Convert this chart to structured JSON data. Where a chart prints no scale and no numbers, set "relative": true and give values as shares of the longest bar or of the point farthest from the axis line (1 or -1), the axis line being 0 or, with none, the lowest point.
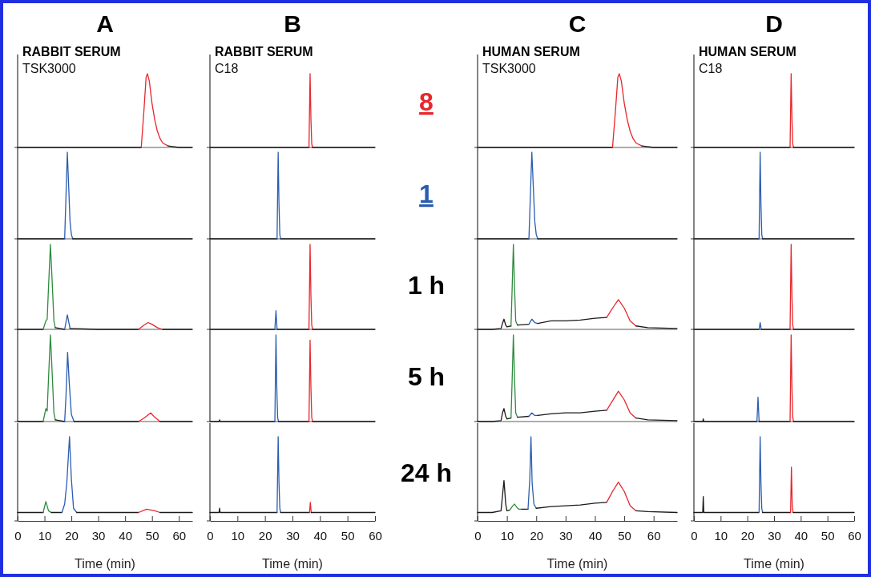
{
  "chart_data": [
    {
      "type": "line",
      "relative": true,
      "title": "A",
      "subtitle": "RABBIT SERUM",
      "annotations": [
        "TSK3000"
      ],
      "xlim": [
        0,
        65
      ],
      "tick_labels": false,
      "series": [
        {
          "color": "#1a1a1a",
          "x": [
            0,
            10,
            20,
            30,
            40,
            46
          ],
          "values": [
            0,
            0,
            0,
            0,
            0,
            0
          ]
        },
        {
          "color": "#e8262c",
          "x": [
            46,
            47,
            47.8,
            48.3,
            49,
            50,
            51,
            52,
            53,
            54,
            56
          ],
          "values": [
            0,
            0.5,
            0.95,
            1,
            0.9,
            0.6,
            0.38,
            0.22,
            0.12,
            0.06,
            0.02
          ]
        },
        {
          "color": "#1a1a1a",
          "x": [
            56,
            60,
            65
          ],
          "values": [
            0.02,
            0,
            0
          ]
        }
      ]
    },
    {
      "type": "line",
      "relative": true,
      "xlim": [
        0,
        65
      ],
      "tick_labels": false,
      "series": [
        {
          "color": "#1a1a1a",
          "x": [
            0,
            10,
            17.5
          ],
          "values": [
            0,
            0,
            0
          ]
        },
        {
          "color": "#2a5db0",
          "x": [
            17.5,
            18,
            18.5,
            19,
            19.5,
            20,
            20.5
          ],
          "values": [
            0,
            0.5,
            1,
            0.6,
            0.2,
            0.05,
            0
          ]
        },
        {
          "color": "#1a1a1a",
          "x": [
            20.5,
            30,
            40,
            50,
            65
          ],
          "values": [
            0,
            0,
            0,
            0,
            0
          ]
        }
      ]
    },
    {
      "type": "line",
      "relative": true,
      "xlim": [
        0,
        65
      ],
      "tick_labels": false,
      "series": [
        {
          "color": "#1a1a1a",
          "x": [
            0,
            5,
            9.5
          ],
          "values": [
            0,
            0,
            0
          ]
        },
        {
          "color": "#2e8b3e",
          "x": [
            9.5,
            10.5,
            11,
            11.5,
            12.2,
            12.8,
            13.5,
            14
          ],
          "values": [
            0,
            0.1,
            0.12,
            0.5,
            1,
            0.6,
            0.1,
            0.02
          ]
        },
        {
          "color": "#1a1a1a",
          "x": [
            14,
            17.5
          ],
          "values": [
            0.02,
            0
          ]
        },
        {
          "color": "#2a5db0",
          "x": [
            17.5,
            18.5,
            19.5
          ],
          "values": [
            0,
            0.17,
            0.01
          ]
        },
        {
          "color": "#1a1a1a",
          "x": [
            19.5,
            30,
            45
          ],
          "values": [
            0.01,
            0,
            0
          ]
        },
        {
          "color": "#e8262c",
          "x": [
            45,
            47,
            48.5,
            50,
            52,
            54
          ],
          "values": [
            0,
            0.05,
            0.08,
            0.06,
            0.02,
            0
          ]
        },
        {
          "color": "#1a1a1a",
          "x": [
            54,
            65
          ],
          "values": [
            0,
            0
          ]
        }
      ]
    },
    {
      "type": "line",
      "relative": true,
      "xlim": [
        0,
        65
      ],
      "tick_labels": false,
      "series": [
        {
          "color": "#1a1a1a",
          "x": [
            0,
            9.5
          ],
          "values": [
            0,
            0
          ]
        },
        {
          "color": "#2e8b3e",
          "x": [
            9.5,
            10.5,
            11,
            11.5,
            12.2,
            12.8,
            13.5,
            14
          ],
          "values": [
            0,
            0.15,
            0.12,
            0.5,
            1,
            0.6,
            0.1,
            0.02
          ]
        },
        {
          "color": "#1a1a1a",
          "x": [
            14,
            17.5
          ],
          "values": [
            0.02,
            0
          ]
        },
        {
          "color": "#2a5db0",
          "x": [
            17.5,
            18,
            18.6,
            19.2,
            20,
            21
          ],
          "values": [
            0,
            0.3,
            0.8,
            0.45,
            0.08,
            0
          ]
        },
        {
          "color": "#1a1a1a",
          "x": [
            21,
            45
          ],
          "values": [
            0,
            0
          ]
        },
        {
          "color": "#e8262c",
          "x": [
            45,
            47,
            49.5,
            51,
            53
          ],
          "values": [
            0,
            0.04,
            0.1,
            0.05,
            0
          ]
        },
        {
          "color": "#1a1a1a",
          "x": [
            53,
            65
          ],
          "values": [
            0,
            0
          ]
        }
      ]
    },
    {
      "type": "line",
      "relative": true,
      "xlim": [
        0,
        65
      ],
      "xticks": [
        0,
        10,
        20,
        30,
        40,
        50,
        60
      ],
      "xlabel": "Time (min)",
      "tick_labels": "x",
      "series": [
        {
          "color": "#1a1a1a",
          "x": [
            0,
            9.5
          ],
          "values": [
            0.1,
            0.1
          ]
        },
        {
          "color": "#2e8b3e",
          "x": [
            9.5,
            10.5,
            11.5,
            12.5
          ],
          "values": [
            0.1,
            0.23,
            0.12,
            0.1
          ]
        },
        {
          "color": "#1a1a1a",
          "x": [
            12.5,
            16.5
          ],
          "values": [
            0.1,
            0.1
          ]
        },
        {
          "color": "#2a5db0",
          "x": [
            16.5,
            17.5,
            18.3,
            19.3,
            20,
            20.8,
            22
          ],
          "values": [
            0.1,
            0.2,
            0.45,
            1,
            0.5,
            0.15,
            0.1
          ]
        },
        {
          "color": "#1a1a1a",
          "x": [
            22,
            45
          ],
          "values": [
            0.1,
            0.1
          ]
        },
        {
          "color": "#e8262c",
          "x": [
            45,
            48,
            51,
            53
          ],
          "values": [
            0.1,
            0.14,
            0.12,
            0.1
          ]
        },
        {
          "color": "#1a1a1a",
          "x": [
            53,
            65
          ],
          "values": [
            0.1,
            0.1
          ]
        }
      ]
    },
    {
      "type": "line",
      "relative": true,
      "title": "B",
      "subtitle": "RABBIT SERUM",
      "annotations": [
        "C18",
        "8"
      ],
      "xlim": [
        0,
        60
      ],
      "tick_labels": false,
      "series": [
        {
          "color": "#1a1a1a",
          "x": [
            0,
            36
          ],
          "values": [
            0,
            0
          ]
        },
        {
          "color": "#e8262c",
          "x": [
            36,
            36.4,
            36.7,
            37,
            37.3
          ],
          "values": [
            0,
            1,
            0.4,
            0.05,
            0
          ]
        },
        {
          "color": "#1a1a1a",
          "x": [
            37.3,
            60
          ],
          "values": [
            0,
            0
          ]
        }
      ]
    },
    {
      "type": "line",
      "relative": true,
      "annotations": [
        "1"
      ],
      "xlim": [
        0,
        60
      ],
      "tick_labels": false,
      "series": [
        {
          "color": "#1a1a1a",
          "x": [
            0,
            24.4
          ],
          "values": [
            0,
            0
          ]
        },
        {
          "color": "#2a5db0",
          "x": [
            24.4,
            24.8,
            25.1,
            25.4,
            25.7
          ],
          "values": [
            0,
            1,
            0.4,
            0.05,
            0
          ]
        },
        {
          "color": "#1a1a1a",
          "x": [
            25.7,
            60
          ],
          "values": [
            0,
            0
          ]
        }
      ]
    },
    {
      "type": "line",
      "relative": true,
      "annotations": [
        "1 h"
      ],
      "xlim": [
        0,
        60
      ],
      "tick_labels": false,
      "series": [
        {
          "color": "#1a1a1a",
          "x": [
            0,
            23.6
          ],
          "values": [
            0,
            0
          ]
        },
        {
          "color": "#2a5db0",
          "x": [
            23.6,
            24,
            24.4
          ],
          "values": [
            0,
            0.22,
            0
          ]
        },
        {
          "color": "#1a1a1a",
          "x": [
            24.4,
            36
          ],
          "values": [
            0,
            0
          ]
        },
        {
          "color": "#e8262c",
          "x": [
            36,
            36.4,
            36.7,
            37,
            37.3
          ],
          "values": [
            0,
            1,
            0.4,
            0.05,
            0
          ]
        },
        {
          "color": "#1a1a1a",
          "x": [
            37.3,
            60
          ],
          "values": [
            0,
            0
          ]
        }
      ]
    },
    {
      "type": "line",
      "relative": true,
      "annotations": [
        "5 h"
      ],
      "xlim": [
        0,
        60
      ],
      "tick_labels": false,
      "series": [
        {
          "color": "#1a1a1a",
          "x": [
            0,
            3.3,
            3.5,
            3.7,
            23.6
          ],
          "values": [
            0,
            0,
            0.02,
            0,
            0
          ]
        },
        {
          "color": "#2a5db0",
          "x": [
            23.6,
            24,
            24.3,
            24.6,
            24.9
          ],
          "values": [
            0,
            1,
            0.4,
            0.05,
            0
          ]
        },
        {
          "color": "#1a1a1a",
          "x": [
            24.9,
            36
          ],
          "values": [
            0,
            0
          ]
        },
        {
          "color": "#e8262c",
          "x": [
            36,
            36.4,
            36.7,
            37,
            37.3
          ],
          "values": [
            0,
            0.94,
            0.4,
            0.05,
            0
          ]
        },
        {
          "color": "#1a1a1a",
          "x": [
            37.3,
            60
          ],
          "values": [
            0,
            0
          ]
        }
      ]
    },
    {
      "type": "line",
      "relative": true,
      "annotations": [
        "24 h"
      ],
      "xlim": [
        0,
        60
      ],
      "xticks": [
        0,
        10,
        20,
        30,
        40,
        50,
        60
      ],
      "xlabel": "Time (min)",
      "tick_labels": "x",
      "series": [
        {
          "color": "#1a1a1a",
          "x": [
            0,
            3.3,
            3.5,
            3.7,
            24.4
          ],
          "values": [
            0.1,
            0.1,
            0.15,
            0.1,
            0.1
          ]
        },
        {
          "color": "#2a5db0",
          "x": [
            24.4,
            24.8,
            25.1,
            25.4,
            25.7
          ],
          "values": [
            0.1,
            1,
            0.45,
            0.15,
            0.1
          ]
        },
        {
          "color": "#1a1a1a",
          "x": [
            25.7,
            36.2
          ],
          "values": [
            0.1,
            0.1
          ]
        },
        {
          "color": "#e8262c",
          "x": [
            36.2,
            36.5,
            36.8
          ],
          "values": [
            0.1,
            0.22,
            0.1
          ]
        },
        {
          "color": "#1a1a1a",
          "x": [
            36.8,
            60
          ],
          "values": [
            0.1,
            0.1
          ]
        }
      ]
    },
    {
      "type": "line",
      "relative": true,
      "title": "C",
      "subtitle": "HUMAN SERUM",
      "annotations": [
        "TSK3000"
      ],
      "xlim": [
        0,
        68
      ],
      "tick_labels": false,
      "series": [
        {
          "color": "#1a1a1a",
          "x": [
            0,
            10,
            20,
            30,
            40,
            46
          ],
          "values": [
            0,
            0,
            0,
            0,
            0,
            0
          ]
        },
        {
          "color": "#e8262c",
          "x": [
            46,
            47,
            47.8,
            48.3,
            49,
            50,
            51,
            52,
            53,
            54,
            56
          ],
          "values": [
            0,
            0.5,
            0.95,
            1,
            0.9,
            0.6,
            0.38,
            0.22,
            0.12,
            0.06,
            0.02
          ]
        },
        {
          "color": "#1a1a1a",
          "x": [
            56,
            60,
            68
          ],
          "values": [
            0.02,
            0,
            0
          ]
        }
      ]
    },
    {
      "type": "line",
      "relative": true,
      "xlim": [
        0,
        68
      ],
      "tick_labels": false,
      "series": [
        {
          "color": "#1a1a1a",
          "x": [
            0,
            10,
            17.5
          ],
          "values": [
            0,
            0,
            0
          ]
        },
        {
          "color": "#2a5db0",
          "x": [
            17.5,
            18,
            18.5,
            19,
            19.5,
            20,
            20.5
          ],
          "values": [
            0,
            0.5,
            1,
            0.6,
            0.2,
            0.05,
            0
          ]
        },
        {
          "color": "#1a1a1a",
          "x": [
            20.5,
            30,
            40,
            50,
            68
          ],
          "values": [
            0,
            0,
            0,
            0,
            0
          ]
        }
      ]
    },
    {
      "type": "line",
      "relative": true,
      "xlim": [
        0,
        68
      ],
      "tick_labels": false,
      "series": [
        {
          "color": "#1a1a1a",
          "x": [
            0,
            5,
            8,
            8.5,
            9,
            9.6,
            10,
            11.4
          ],
          "values": [
            0,
            0,
            0.01,
            0.07,
            0.12,
            0.05,
            0.03,
            0.04
          ]
        },
        {
          "color": "#2e8b3e",
          "x": [
            11.4,
            11.8,
            12.2,
            12.6,
            13,
            13.6
          ],
          "values": [
            0.04,
            0.5,
            1,
            0.5,
            0.1,
            0.05
          ]
        },
        {
          "color": "#1a1a1a",
          "x": [
            13.6,
            17.5
          ],
          "values": [
            0.05,
            0.06
          ]
        },
        {
          "color": "#2a5db0",
          "x": [
            17.5,
            18.5,
            19.5,
            20.5
          ],
          "values": [
            0.06,
            0.12,
            0.08,
            0.07
          ]
        },
        {
          "color": "#1a1a1a",
          "x": [
            20.5,
            25,
            30,
            35,
            40,
            44
          ],
          "values": [
            0.07,
            0.1,
            0.1,
            0.11,
            0.13,
            0.14
          ]
        },
        {
          "color": "#e8262c",
          "x": [
            44,
            46,
            48,
            50,
            52,
            54
          ],
          "values": [
            0.14,
            0.25,
            0.35,
            0.25,
            0.1,
            0.04
          ]
        },
        {
          "color": "#1a1a1a",
          "x": [
            54,
            58,
            68
          ],
          "values": [
            0.04,
            0.02,
            0.01
          ]
        }
      ]
    },
    {
      "type": "line",
      "relative": true,
      "xlim": [
        0,
        68
      ],
      "tick_labels": false,
      "series": [
        {
          "color": "#1a1a1a",
          "x": [
            0,
            5,
            8,
            8.5,
            9,
            9.6,
            10,
            11.4
          ],
          "values": [
            0,
            0,
            0.01,
            0.1,
            0.15,
            0.06,
            0.03,
            0.04
          ]
        },
        {
          "color": "#2e8b3e",
          "x": [
            11.4,
            11.8,
            12.2,
            12.6,
            13,
            13.6
          ],
          "values": [
            0.04,
            0.5,
            1,
            0.5,
            0.1,
            0.05
          ]
        },
        {
          "color": "#1a1a1a",
          "x": [
            13.6,
            17.5
          ],
          "values": [
            0.05,
            0.06
          ]
        },
        {
          "color": "#2a5db0",
          "x": [
            17.5,
            18.5,
            19.5,
            20.5
          ],
          "values": [
            0.06,
            0.1,
            0.07,
            0.07
          ]
        },
        {
          "color": "#1a1a1a",
          "x": [
            20.5,
            25,
            30,
            35,
            40,
            44
          ],
          "values": [
            0.07,
            0.09,
            0.1,
            0.1,
            0.12,
            0.13
          ]
        },
        {
          "color": "#e8262c",
          "x": [
            44,
            46,
            48,
            50,
            52,
            54
          ],
          "values": [
            0.13,
            0.24,
            0.35,
            0.25,
            0.1,
            0.04
          ]
        },
        {
          "color": "#1a1a1a",
          "x": [
            54,
            58,
            68
          ],
          "values": [
            0.04,
            0.02,
            0.01
          ]
        }
      ]
    },
    {
      "type": "line",
      "relative": true,
      "xlim": [
        0,
        68
      ],
      "xticks": [
        0,
        10,
        20,
        30,
        40,
        50,
        60
      ],
      "xlabel": "Time (min)",
      "tick_labels": "x",
      "series": [
        {
          "color": "#1a1a1a",
          "x": [
            0,
            5,
            8,
            8.5,
            9,
            9.6,
            10,
            11
          ],
          "values": [
            0.1,
            0.1,
            0.12,
            0.3,
            0.48,
            0.2,
            0.12,
            0.13
          ]
        },
        {
          "color": "#2e8b3e",
          "x": [
            11,
            12,
            12.6,
            13.4,
            14,
            15
          ],
          "values": [
            0.13,
            0.18,
            0.2,
            0.16,
            0.14,
            0.14
          ]
        },
        {
          "color": "#1a1a1a",
          "x": [
            15,
            17.2
          ],
          "values": [
            0.14,
            0.14
          ]
        },
        {
          "color": "#2a5db0",
          "x": [
            17.2,
            17.8,
            18.2,
            18.6,
            19.2,
            20
          ],
          "values": [
            0.14,
            0.5,
            1,
            0.45,
            0.2,
            0.15
          ]
        },
        {
          "color": "#1a1a1a",
          "x": [
            20,
            25,
            30,
            35,
            40,
            44
          ],
          "values": [
            0.15,
            0.17,
            0.18,
            0.19,
            0.21,
            0.22
          ]
        },
        {
          "color": "#e8262c",
          "x": [
            44,
            46,
            48,
            50,
            52,
            54
          ],
          "values": [
            0.22,
            0.35,
            0.46,
            0.35,
            0.18,
            0.12
          ]
        },
        {
          "color": "#1a1a1a",
          "x": [
            54,
            58,
            68
          ],
          "values": [
            0.12,
            0.11,
            0.1
          ]
        }
      ]
    },
    {
      "type": "line",
      "relative": true,
      "title": "D",
      "subtitle": "HUMAN SERUM",
      "annotations": [
        "C18"
      ],
      "xlim": [
        0,
        60
      ],
      "tick_labels": false,
      "series": [
        {
          "color": "#1a1a1a",
          "x": [
            0,
            36
          ],
          "values": [
            0,
            0
          ]
        },
        {
          "color": "#e8262c",
          "x": [
            36,
            36.4,
            36.7,
            37,
            37.3
          ],
          "values": [
            0,
            1,
            0.4,
            0.05,
            0
          ]
        },
        {
          "color": "#1a1a1a",
          "x": [
            37.3,
            60
          ],
          "values": [
            0,
            0
          ]
        }
      ]
    },
    {
      "type": "line",
      "relative": true,
      "xlim": [
        0,
        60
      ],
      "tick_labels": false,
      "series": [
        {
          "color": "#1a1a1a",
          "x": [
            0,
            24.4
          ],
          "values": [
            0,
            0
          ]
        },
        {
          "color": "#2a5db0",
          "x": [
            24.4,
            24.8,
            25.1,
            25.4,
            25.7
          ],
          "values": [
            0,
            1,
            0.4,
            0.05,
            0
          ]
        },
        {
          "color": "#1a1a1a",
          "x": [
            25.7,
            60
          ],
          "values": [
            0,
            0
          ]
        }
      ]
    },
    {
      "type": "line",
      "relative": true,
      "xlim": [
        0,
        60
      ],
      "tick_labels": false,
      "series": [
        {
          "color": "#1a1a1a",
          "x": [
            0,
            24.4
          ],
          "values": [
            0,
            0
          ]
        },
        {
          "color": "#2a5db0",
          "x": [
            24.4,
            24.8,
            25.2
          ],
          "values": [
            0,
            0.08,
            0
          ]
        },
        {
          "color": "#1a1a1a",
          "x": [
            25.2,
            36
          ],
          "values": [
            0,
            0
          ]
        },
        {
          "color": "#e8262c",
          "x": [
            36,
            36.4,
            36.7,
            37,
            37.3
          ],
          "values": [
            0,
            1,
            0.4,
            0.05,
            0
          ]
        },
        {
          "color": "#1a1a1a",
          "x": [
            37.3,
            60
          ],
          "values": [
            0,
            0
          ]
        }
      ]
    },
    {
      "type": "line",
      "relative": true,
      "xlim": [
        0,
        60
      ],
      "tick_labels": false,
      "series": [
        {
          "color": "#1a1a1a",
          "x": [
            0,
            3.3,
            3.5,
            3.7,
            23.6
          ],
          "values": [
            0,
            0,
            0.03,
            0,
            0
          ]
        },
        {
          "color": "#2a5db0",
          "x": [
            23.6,
            24,
            24.4
          ],
          "values": [
            0,
            0.28,
            0
          ]
        },
        {
          "color": "#1a1a1a",
          "x": [
            24.4,
            36
          ],
          "values": [
            0,
            0
          ]
        },
        {
          "color": "#e8262c",
          "x": [
            36,
            36.4,
            36.7,
            37,
            37.3
          ],
          "values": [
            0,
            1,
            0.4,
            0.05,
            0
          ]
        },
        {
          "color": "#1a1a1a",
          "x": [
            37.3,
            60
          ],
          "values": [
            0,
            0
          ]
        }
      ]
    },
    {
      "type": "line",
      "relative": true,
      "xlim": [
        0,
        60
      ],
      "xticks": [
        0,
        10,
        20,
        30,
        40,
        50,
        60
      ],
      "xlabel": "Time (min)",
      "tick_labels": "x",
      "series": [
        {
          "color": "#1a1a1a",
          "x": [
            0,
            3.3,
            3.5,
            3.7,
            24.4
          ],
          "values": [
            0.1,
            0.1,
            0.29,
            0.1,
            0.1
          ]
        },
        {
          "color": "#2a5db0",
          "x": [
            24.4,
            24.8,
            25.1,
            25.4,
            25.7
          ],
          "values": [
            0.1,
            1,
            0.45,
            0.15,
            0.1
          ]
        },
        {
          "color": "#1a1a1a",
          "x": [
            25.7,
            36.2
          ],
          "values": [
            0.1,
            0.1
          ]
        },
        {
          "color": "#e8262c",
          "x": [
            36.2,
            36.5,
            36.8,
            37.1
          ],
          "values": [
            0.1,
            0.64,
            0.2,
            0.1
          ]
        },
        {
          "color": "#1a1a1a",
          "x": [
            37.1,
            60
          ],
          "values": [
            0.1,
            0.1
          ]
        }
      ]
    }
  ]
}
